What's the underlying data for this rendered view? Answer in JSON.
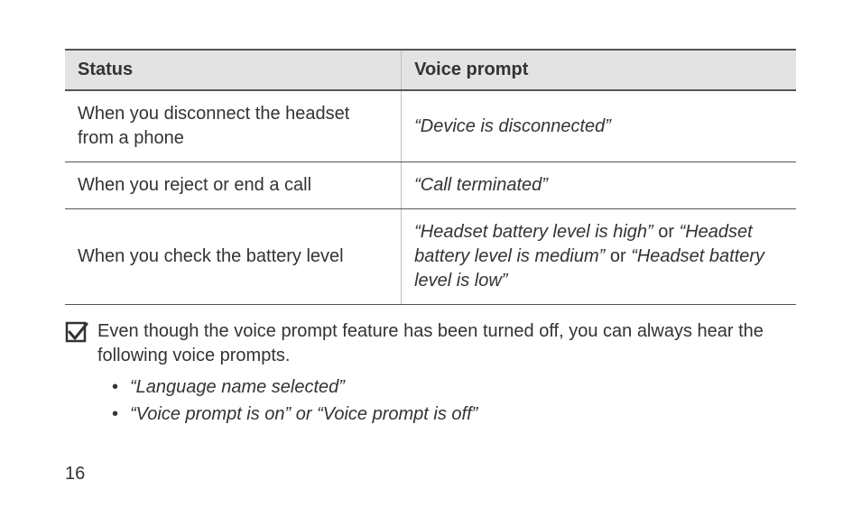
{
  "table": {
    "header": {
      "status": "Status",
      "prompt": "Voice prompt"
    },
    "rows": [
      {
        "status": "When you disconnect the headset from a phone",
        "prompt_html": "<span class=\"ital\">“Device is disconnected”</span>"
      },
      {
        "status": "When you reject or end a call",
        "prompt_html": "<span class=\"ital\">“Call terminated”</span>"
      },
      {
        "status": "When you check the battery level",
        "prompt_html": "<span class=\"ital\">“Headset battery level is high”</span> or <span class=\"ital\">“Headset battery level is medium”</span> or <span class=\"ital\">“Headset battery level is low”</span>"
      }
    ]
  },
  "note": {
    "text": "Even though the voice prompt feature has been turned off, you can always hear the following voice prompts.",
    "bullets": [
      "“Language name selected”",
      "“Voice prompt is on” or “Voice prompt is off”"
    ]
  },
  "page_number": "16",
  "colors": {
    "header_bg": "#e3e3e3",
    "border_dark": "#555555",
    "border_light": "#bfbfbf",
    "text": "#333333",
    "icon_stroke": "#333333"
  },
  "layout": {
    "page_padding_lr": 72,
    "page_padding_top": 54,
    "col1_pct": 46,
    "col2_pct": 54,
    "font_size_pt": 20
  }
}
